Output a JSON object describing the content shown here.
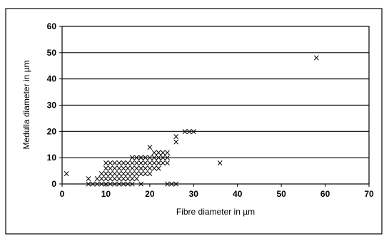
{
  "chart_data": {
    "type": "scatter",
    "title": "",
    "xlabel": "Fibre diameter in µm",
    "ylabel": "Medulla diameter in µm",
    "xlim": [
      0,
      70
    ],
    "ylim": [
      0,
      60
    ],
    "x_ticks": [
      "0",
      "10",
      "20",
      "30",
      "40",
      "50",
      "60",
      "70"
    ],
    "y_ticks": [
      "0",
      "10",
      "20",
      "30",
      "40",
      "50",
      "60"
    ],
    "grid": "horizontal",
    "legend": "none",
    "marker": "×",
    "marker_color": "#000000",
    "points": [
      [
        1,
        4
      ],
      [
        6,
        0
      ],
      [
        6,
        2
      ],
      [
        7,
        0
      ],
      [
        8,
        0
      ],
      [
        8,
        2
      ],
      [
        9,
        0
      ],
      [
        9,
        2
      ],
      [
        9,
        4
      ],
      [
        10,
        0
      ],
      [
        10,
        2
      ],
      [
        10,
        4
      ],
      [
        10,
        6
      ],
      [
        10,
        8
      ],
      [
        11,
        0
      ],
      [
        11,
        2
      ],
      [
        11,
        4
      ],
      [
        11,
        6
      ],
      [
        11,
        8
      ],
      [
        12,
        0
      ],
      [
        12,
        2
      ],
      [
        12,
        4
      ],
      [
        12,
        6
      ],
      [
        12,
        8
      ],
      [
        13,
        0
      ],
      [
        13,
        2
      ],
      [
        13,
        4
      ],
      [
        13,
        6
      ],
      [
        13,
        8
      ],
      [
        14,
        0
      ],
      [
        14,
        2
      ],
      [
        14,
        4
      ],
      [
        14,
        6
      ],
      [
        14,
        8
      ],
      [
        15,
        0
      ],
      [
        15,
        2
      ],
      [
        15,
        4
      ],
      [
        15,
        6
      ],
      [
        15,
        8
      ],
      [
        16,
        0
      ],
      [
        16,
        2
      ],
      [
        16,
        4
      ],
      [
        16,
        6
      ],
      [
        16,
        8
      ],
      [
        16,
        10
      ],
      [
        17,
        2
      ],
      [
        17,
        4
      ],
      [
        17,
        6
      ],
      [
        17,
        8
      ],
      [
        17,
        10
      ],
      [
        18,
        0
      ],
      [
        18,
        4
      ],
      [
        18,
        6
      ],
      [
        18,
        8
      ],
      [
        18,
        10
      ],
      [
        19,
        4
      ],
      [
        19,
        6
      ],
      [
        19,
        8
      ],
      [
        19,
        10
      ],
      [
        20,
        4
      ],
      [
        20,
        6
      ],
      [
        20,
        8
      ],
      [
        20,
        10
      ],
      [
        20,
        14
      ],
      [
        21,
        6
      ],
      [
        21,
        8
      ],
      [
        21,
        10
      ],
      [
        21,
        12
      ],
      [
        22,
        6
      ],
      [
        22,
        8
      ],
      [
        22,
        10
      ],
      [
        22,
        12
      ],
      [
        23,
        8
      ],
      [
        23,
        10
      ],
      [
        23,
        12
      ],
      [
        24,
        8
      ],
      [
        24,
        10
      ],
      [
        24,
        12
      ],
      [
        24,
        0
      ],
      [
        25,
        0
      ],
      [
        26,
        0
      ],
      [
        26,
        16
      ],
      [
        26,
        18
      ],
      [
        28,
        20
      ],
      [
        29,
        20
      ],
      [
        30,
        20
      ],
      [
        36,
        8
      ],
      [
        58,
        48
      ]
    ]
  }
}
